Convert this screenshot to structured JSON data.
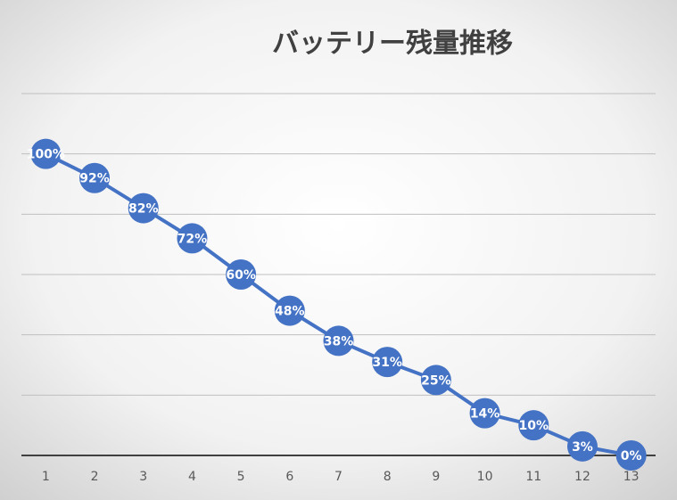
{
  "chart_data": {
    "type": "line",
    "title": "バッテリー残量推移",
    "categories": [
      1,
      2,
      3,
      4,
      5,
      6,
      7,
      8,
      9,
      10,
      11,
      12,
      13
    ],
    "series": [
      {
        "color": "#4472c4",
        "values": [
          100,
          92,
          82,
          72,
          60,
          48,
          38,
          31,
          25,
          14,
          10,
          3,
          0
        ],
        "value_labels": [
          "100%",
          "92%",
          "82%",
          "72%",
          "60%",
          "48%",
          "38%",
          "31%",
          "25%",
          "14%",
          "10%",
          "3%",
          "0%"
        ]
      }
    ],
    "ylim": [
      0,
      120
    ],
    "yticks": [
      0,
      20,
      40,
      60,
      80,
      100,
      120
    ],
    "grid": true
  }
}
